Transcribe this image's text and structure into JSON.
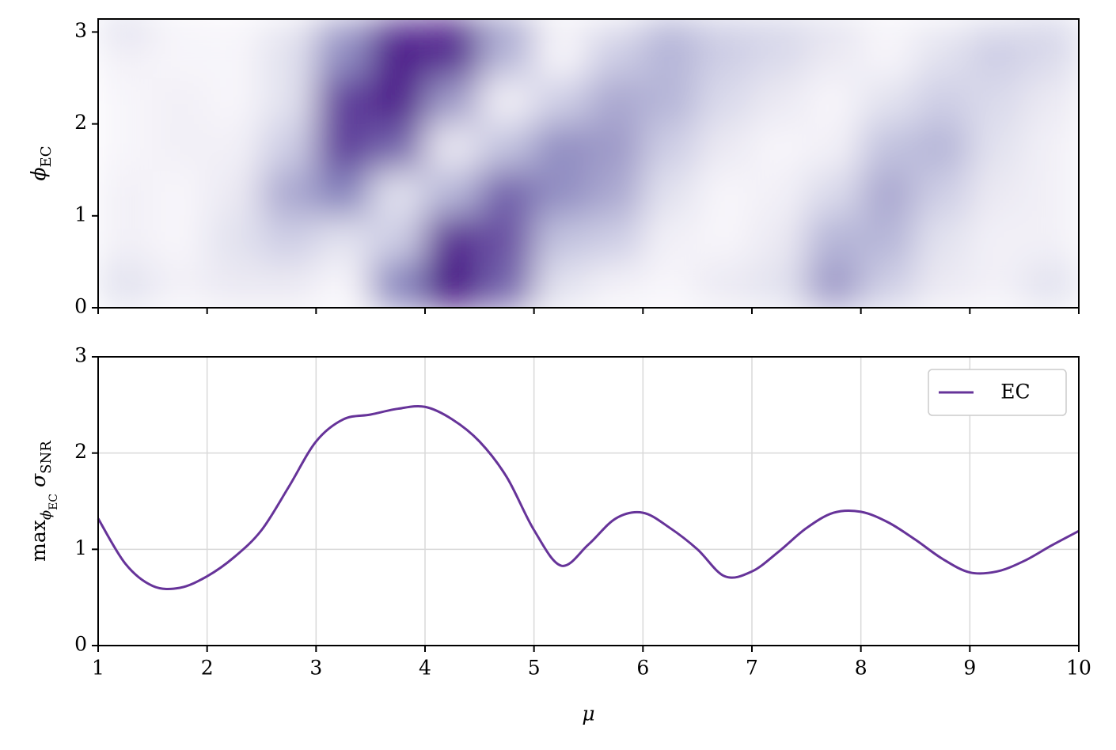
{
  "chart_data": [
    {
      "type": "heatmap",
      "ylabel": [
        {
          "text": "ϕ"
        },
        {
          "text": "EC",
          "sub": 1
        }
      ],
      "xlim": [
        1,
        10
      ],
      "xticks": [
        1,
        2,
        3,
        4,
        5,
        6,
        7,
        8,
        9,
        10
      ],
      "xticklabels": false,
      "ylim": [
        0,
        3.1416
      ],
      "yticks": [
        0,
        1,
        2,
        3
      ],
      "colors": [
        "#fcfbfd",
        "#efedf5",
        "#dadaeb",
        "#bcbddc",
        "#9e9ac8",
        "#807dba",
        "#6a51a3",
        "#54278f",
        "#3f007d"
      ],
      "xbins": [
        1,
        1.5,
        2,
        2.5,
        3,
        3.5,
        4,
        4.5,
        5,
        5.5,
        6,
        6.5,
        7,
        7.5,
        8,
        8.5,
        9,
        9.5,
        10
      ],
      "ybins": [
        0,
        0.5,
        1,
        1.5,
        2,
        2.5,
        3,
        3.1416
      ],
      "z": [
        [
          0.2,
          0.1,
          0.15,
          0.15,
          0.05,
          0.6,
          0.95,
          0.7,
          0.2,
          0.1,
          0.05,
          0.15,
          0.2,
          0.5,
          0.3,
          0.15,
          0.1,
          0.2
        ],
        [
          0.1,
          0.05,
          0.2,
          0.3,
          0.2,
          0.3,
          0.85,
          0.75,
          0.35,
          0.3,
          0.1,
          0.05,
          0.15,
          0.4,
          0.4,
          0.2,
          0.1,
          0.1
        ],
        [
          0.1,
          0.05,
          0.15,
          0.45,
          0.6,
          0.2,
          0.4,
          0.7,
          0.55,
          0.45,
          0.2,
          0.05,
          0.1,
          0.25,
          0.45,
          0.3,
          0.15,
          0.1
        ],
        [
          0.05,
          0.1,
          0.1,
          0.3,
          0.8,
          0.7,
          0.15,
          0.35,
          0.55,
          0.5,
          0.3,
          0.15,
          0.05,
          0.1,
          0.35,
          0.4,
          0.2,
          0.1
        ],
        [
          0.05,
          0.1,
          0.05,
          0.2,
          0.8,
          0.9,
          0.5,
          0.1,
          0.3,
          0.45,
          0.4,
          0.25,
          0.15,
          0.05,
          0.2,
          0.3,
          0.25,
          0.15
        ],
        [
          0.1,
          0.05,
          0.05,
          0.2,
          0.55,
          0.9,
          0.85,
          0.4,
          0.05,
          0.3,
          0.4,
          0.3,
          0.25,
          0.15,
          0.05,
          0.2,
          0.3,
          0.25
        ],
        [
          0.3,
          0.1,
          0.05,
          0.15,
          0.45,
          0.8,
          0.95,
          0.6,
          0.15,
          0.15,
          0.4,
          0.3,
          0.3,
          0.25,
          0.1,
          0.1,
          0.2,
          0.3
        ]
      ]
    },
    {
      "type": "line",
      "xlabel": "μ",
      "ylabel": [
        {
          "text": "max"
        },
        {
          "text": "ϕ",
          "sub": 1
        },
        {
          "text": "EC",
          "sub": 2
        },
        {
          "text": "σ"
        },
        {
          "text": "SNR",
          "sub": 1
        }
      ],
      "xlim": [
        1,
        10
      ],
      "xticks": [
        1,
        2,
        3,
        4,
        5,
        6,
        7,
        8,
        9,
        10
      ],
      "ylim": [
        0,
        3
      ],
      "yticks": [
        0,
        1,
        2,
        3
      ],
      "grid": true,
      "legend": "upper right",
      "x": [
        1,
        1.25,
        1.5,
        1.75,
        2,
        2.25,
        2.5,
        2.75,
        3,
        3.25,
        3.5,
        3.75,
        4,
        4.25,
        4.5,
        4.75,
        5,
        5.25,
        5.5,
        5.75,
        6,
        6.25,
        6.5,
        6.75,
        7,
        7.25,
        7.5,
        7.75,
        8,
        8.25,
        8.5,
        8.75,
        9,
        9.25,
        9.5,
        9.75,
        10
      ],
      "series": [
        {
          "name": "EC",
          "color": "#663399",
          "values": [
            1.32,
            0.85,
            0.62,
            0.6,
            0.72,
            0.92,
            1.2,
            1.65,
            2.12,
            2.35,
            2.4,
            2.46,
            2.48,
            2.35,
            2.12,
            1.75,
            1.2,
            0.83,
            1.05,
            1.32,
            1.38,
            1.22,
            1.0,
            0.72,
            0.77,
            0.98,
            1.22,
            1.38,
            1.39,
            1.28,
            1.1,
            0.9,
            0.76,
            0.77,
            0.88,
            1.04,
            1.19
          ]
        }
      ]
    }
  ]
}
